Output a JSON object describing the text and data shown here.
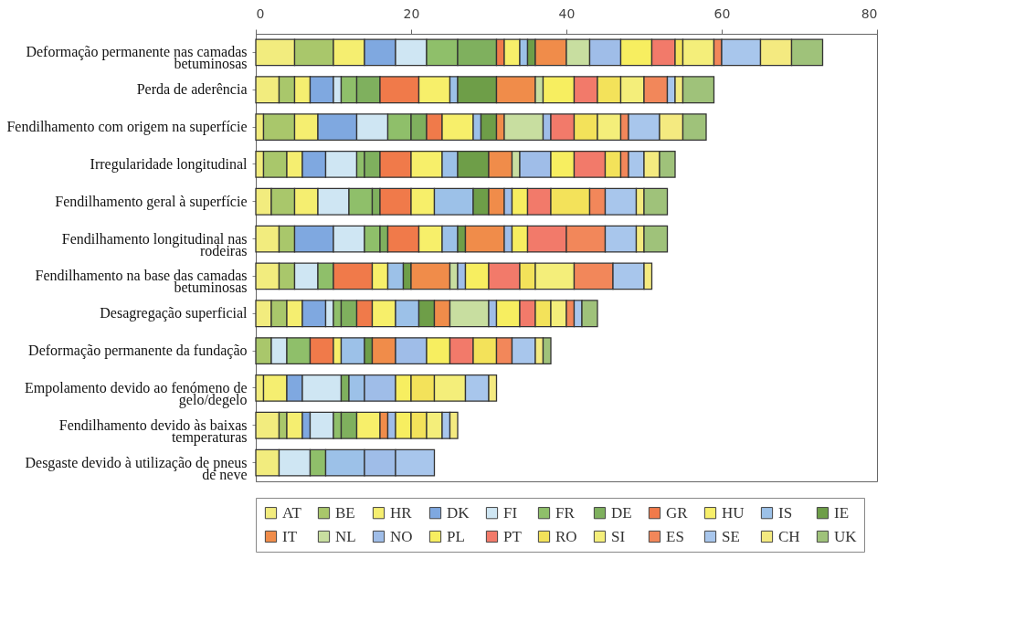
{
  "chart_data": {
    "type": "bar",
    "orientation": "horizontal",
    "stacked": true,
    "categories": [
      "Deformação permanente nas camadas betuminosas",
      "Perda de aderência",
      "Fendilhamento com origem na superfície",
      "Irregularidade longitudinal",
      "Fendilhamento geral à superfície",
      "Fendilhamento longitudinal nas rodeiras",
      "Fendilhamento na base das camadas betuminosas",
      "Desagregação superficial",
      "Deformação permanente da fundação",
      "Empolamento devido ao fenómeno de gelo/degelo",
      "Fendilhamento devido às baixas temperaturas",
      "Desgaste devido à utilização de pneus de neve"
    ],
    "xlim": [
      0,
      80
    ],
    "xticks": [
      0,
      20,
      40,
      60,
      80
    ],
    "grid": false,
    "legend": "bottom",
    "series": [
      {
        "name": "AT",
        "color": "#f2ec7e",
        "values": [
          5,
          3,
          1,
          1,
          2,
          3,
          3,
          2,
          0,
          1,
          3,
          3
        ]
      },
      {
        "name": "BE",
        "color": "#a9c76b",
        "values": [
          5,
          2,
          4,
          3,
          3,
          2,
          2,
          2,
          2,
          0,
          1,
          0
        ]
      },
      {
        "name": "HR",
        "color": "#f5ee70",
        "values": [
          4,
          2,
          3,
          2,
          3,
          0,
          0,
          2,
          0,
          3,
          2,
          0
        ]
      },
      {
        "name": "DK",
        "color": "#7fa8e0",
        "values": [
          4,
          3,
          5,
          3,
          0,
          5,
          0,
          3,
          0,
          2,
          1,
          0
        ]
      },
      {
        "name": "FI",
        "color": "#cfe6f3",
        "values": [
          4,
          1,
          4,
          4,
          4,
          4,
          3,
          1,
          2,
          5,
          3,
          4
        ]
      },
      {
        "name": "FR",
        "color": "#8fbf6a",
        "values": [
          4,
          2,
          3,
          1,
          3,
          2,
          2,
          1,
          3,
          0,
          1,
          2
        ]
      },
      {
        "name": "DE",
        "color": "#7fb05e",
        "values": [
          5,
          3,
          2,
          2,
          1,
          1,
          0,
          2,
          0,
          1,
          2,
          0
        ]
      },
      {
        "name": "GR",
        "color": "#f07a4a",
        "values": [
          1,
          5,
          2,
          4,
          4,
          4,
          5,
          2,
          3,
          0,
          0,
          0
        ]
      },
      {
        "name": "HU",
        "color": "#f7ef6a",
        "values": [
          2,
          4,
          4,
          4,
          3,
          3,
          2,
          3,
          1,
          0,
          3,
          0
        ]
      },
      {
        "name": "IS",
        "color": "#9cc1e8",
        "values": [
          1,
          1,
          1,
          2,
          5,
          2,
          2,
          3,
          3,
          2,
          0,
          5
        ]
      },
      {
        "name": "IE",
        "color": "#6e9e48",
        "values": [
          1,
          5,
          2,
          4,
          2,
          1,
          1,
          2,
          1,
          0,
          0,
          0
        ]
      },
      {
        "name": "IT",
        "color": "#f08c4a",
        "values": [
          4,
          5,
          1,
          3,
          2,
          5,
          5,
          2,
          3,
          0,
          1,
          0
        ]
      },
      {
        "name": "NL",
        "color": "#c8dea0",
        "values": [
          3,
          1,
          5,
          1,
          0,
          0,
          1,
          5,
          0,
          0,
          0,
          0
        ]
      },
      {
        "name": "NO",
        "color": "#9fbde8",
        "values": [
          4,
          0,
          1,
          4,
          1,
          1,
          1,
          1,
          4,
          4,
          1,
          4
        ]
      },
      {
        "name": "PL",
        "color": "#f7ee60",
        "values": [
          4,
          4,
          0,
          3,
          2,
          2,
          3,
          3,
          3,
          2,
          2,
          0
        ]
      },
      {
        "name": "PT",
        "color": "#f27a6a",
        "values": [
          3,
          3,
          3,
          4,
          3,
          5,
          4,
          2,
          3,
          0,
          0,
          0
        ]
      },
      {
        "name": "RO",
        "color": "#f3e25a",
        "values": [
          1,
          3,
          3,
          2,
          5,
          0,
          2,
          2,
          3,
          3,
          2,
          0
        ]
      },
      {
        "name": "SI",
        "color": "#f4ee7a",
        "values": [
          4,
          3,
          3,
          0,
          0,
          0,
          5,
          2,
          0,
          4,
          2,
          0
        ]
      },
      {
        "name": "ES",
        "color": "#f2875a",
        "values": [
          1,
          3,
          1,
          1,
          2,
          5,
          5,
          1,
          2,
          0,
          0,
          0
        ]
      },
      {
        "name": "SE",
        "color": "#a8c6ec",
        "values": [
          5,
          1,
          4,
          2,
          4,
          4,
          4,
          1,
          3,
          3,
          1,
          5
        ]
      },
      {
        "name": "CH",
        "color": "#f4ea80",
        "values": [
          4,
          1,
          3,
          2,
          1,
          1,
          1,
          0,
          1,
          1,
          1,
          0
        ]
      },
      {
        "name": "UK",
        "color": "#9fc27a",
        "values": [
          4,
          4,
          3,
          2,
          3,
          3,
          0,
          2,
          1,
          0,
          0,
          0
        ]
      }
    ]
  }
}
